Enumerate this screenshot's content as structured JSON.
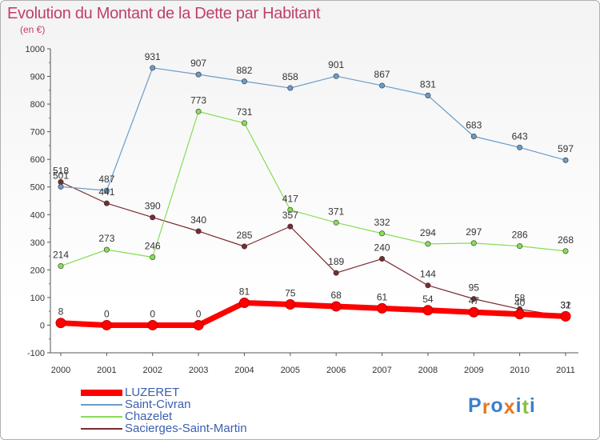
{
  "header": {
    "title": "Evolution du Montant de la Dette par Habitant",
    "unit": "(en €)"
  },
  "chart_data": {
    "type": "line",
    "title": "Evolution du Montant de la Dette par Habitant",
    "subtitle": "(en €)",
    "x": [
      "2000",
      "2001",
      "2002",
      "2003",
      "2004",
      "2005",
      "2006",
      "2007",
      "2008",
      "2009",
      "2010",
      "2011"
    ],
    "ylim": [
      -100,
      1000
    ],
    "yticks": [
      "-100",
      "0",
      "100",
      "200",
      "300",
      "400",
      "500",
      "600",
      "700",
      "800",
      "900",
      "1000"
    ],
    "grid": false,
    "legend_position": "bottom-left",
    "series": [
      {
        "name": "LUZERET",
        "color": "#ff0000",
        "values": [
          8,
          0,
          0,
          0,
          81,
          75,
          68,
          61,
          54,
          47,
          40,
          32
        ],
        "labels": [
          "8",
          "0",
          "0",
          "0",
          "81",
          "75",
          "68",
          "61",
          "54",
          "47",
          "40",
          "32"
        ]
      },
      {
        "name": "Saint-Civran",
        "color": "#6a9cc8",
        "values": [
          501,
          487,
          931,
          907,
          882,
          858,
          901,
          867,
          831,
          683,
          643,
          597
        ],
        "labels": [
          "501",
          "487",
          "931",
          "907",
          "882",
          "858",
          "901",
          "867",
          "831",
          "683",
          "643",
          "597"
        ]
      },
      {
        "name": "Chazelet",
        "color": "#88dd55",
        "values": [
          214,
          273,
          246,
          773,
          731,
          417,
          371,
          332,
          294,
          297,
          286,
          268
        ],
        "labels": [
          "214",
          "273",
          "246",
          "773",
          "731",
          "417",
          "371",
          "332",
          "294",
          "297",
          "286",
          "268"
        ]
      },
      {
        "name": "Sacierges-Saint-Martin",
        "color": "#7a2a30",
        "values": [
          518,
          441,
          390,
          340,
          285,
          357,
          189,
          240,
          144,
          95,
          58,
          31
        ],
        "labels": [
          "518",
          "441",
          "390",
          "340",
          "285",
          "357",
          "189",
          "240",
          "144",
          "95",
          "58",
          "31"
        ]
      }
    ]
  },
  "logo": {
    "letters": [
      "P",
      "r",
      "o",
      "x",
      "i",
      "t",
      "i"
    ],
    "colors": [
      "#3a7fd0",
      "#e87722",
      "#3a7fd0",
      "#e87722",
      "#3a7fd0",
      "#88c040",
      "#3a7fd0"
    ]
  }
}
